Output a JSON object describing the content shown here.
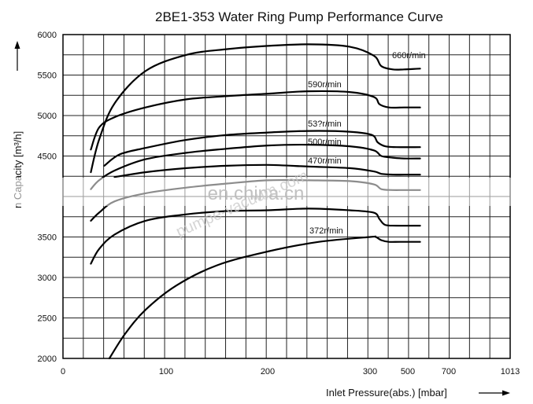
{
  "chart_data": {
    "type": "line",
    "title": "2BE1-353 Water Ring Pump Performance Curve",
    "xlabel": "Inlet Pressure(abs.) [mbar]",
    "ylabel": "Suction Capacity  [m³/h]",
    "ylabel_visible_left": "n Capacity  [m³/h]",
    "x_tick_labels": [
      "0",
      "100",
      "200",
      "300",
      "500",
      "700",
      "1013"
    ],
    "y_tick_labels": [
      "2000",
      "2500",
      "3000",
      "3500",
      "4500",
      "5000",
      "5500",
      "6000"
    ],
    "ylim": [
      2000,
      6000
    ],
    "grid": true,
    "series": [
      {
        "name": "660r/min",
        "points": [
          [
            27,
            4300
          ],
          [
            35,
            4700
          ],
          [
            50,
            5150
          ],
          [
            80,
            5550
          ],
          [
            120,
            5750
          ],
          [
            160,
            5820
          ],
          [
            200,
            5860
          ],
          [
            240,
            5880
          ],
          [
            280,
            5850
          ],
          [
            320,
            5740
          ],
          [
            360,
            5610
          ],
          [
            420,
            5570
          ],
          [
            480,
            5570
          ],
          [
            560,
            5580
          ]
        ]
      },
      {
        "name": "590r/min",
        "points": [
          [
            27,
            4580
          ],
          [
            35,
            4850
          ],
          [
            50,
            4980
          ],
          [
            80,
            5100
          ],
          [
            120,
            5200
          ],
          [
            160,
            5240
          ],
          [
            200,
            5270
          ],
          [
            240,
            5300
          ],
          [
            280,
            5290
          ],
          [
            320,
            5230
          ],
          [
            350,
            5140
          ],
          [
            400,
            5100
          ],
          [
            480,
            5100
          ],
          [
            560,
            5100
          ]
        ]
      },
      {
        "name": "53?r/min",
        "points": [
          [
            40,
            4380
          ],
          [
            55,
            4520
          ],
          [
            80,
            4600
          ],
          [
            120,
            4700
          ],
          [
            160,
            4760
          ],
          [
            200,
            4790
          ],
          [
            240,
            4810
          ],
          [
            280,
            4800
          ],
          [
            310,
            4760
          ],
          [
            340,
            4670
          ],
          [
            380,
            4620
          ],
          [
            440,
            4610
          ],
          [
            560,
            4610
          ]
        ]
      },
      {
        "name": "500r/min",
        "points": [
          [
            27,
            4090
          ],
          [
            35,
            4200
          ],
          [
            50,
            4320
          ],
          [
            80,
            4460
          ],
          [
            120,
            4540
          ],
          [
            160,
            4590
          ],
          [
            200,
            4630
          ],
          [
            240,
            4640
          ],
          [
            280,
            4620
          ],
          [
            320,
            4570
          ],
          [
            360,
            4500
          ],
          [
            420,
            4480
          ],
          [
            480,
            4470
          ],
          [
            560,
            4470
          ]
        ]
      },
      {
        "name": "470r/min",
        "points": [
          [
            50,
            4240
          ],
          [
            80,
            4300
          ],
          [
            120,
            4350
          ],
          [
            160,
            4380
          ],
          [
            200,
            4390
          ],
          [
            240,
            4370
          ],
          [
            280,
            4350
          ],
          [
            320,
            4310
          ],
          [
            360,
            4280
          ],
          [
            420,
            4270
          ],
          [
            480,
            4270
          ],
          [
            560,
            4270
          ]
        ]
      },
      {
        "name": "",
        "points": [
          [
            27,
            3700
          ],
          [
            35,
            3800
          ],
          [
            50,
            3940
          ],
          [
            80,
            4040
          ],
          [
            120,
            4110
          ],
          [
            160,
            4160
          ],
          [
            200,
            4200
          ],
          [
            240,
            4200
          ],
          [
            280,
            4190
          ],
          [
            320,
            4150
          ],
          [
            360,
            4090
          ],
          [
            420,
            4080
          ],
          [
            480,
            4080
          ],
          [
            560,
            4080
          ]
        ]
      },
      {
        "name": "",
        "points": [
          [
            27,
            3170
          ],
          [
            35,
            3350
          ],
          [
            50,
            3530
          ],
          [
            80,
            3700
          ],
          [
            120,
            3780
          ],
          [
            160,
            3820
          ],
          [
            200,
            3830
          ],
          [
            240,
            3850
          ],
          [
            280,
            3830
          ],
          [
            320,
            3800
          ],
          [
            350,
            3720
          ],
          [
            380,
            3650
          ],
          [
            440,
            3640
          ],
          [
            560,
            3640
          ]
        ]
      },
      {
        "name": "372r/min",
        "points": [
          [
            45,
            2000
          ],
          [
            60,
            2300
          ],
          [
            80,
            2600
          ],
          [
            110,
            2900
          ],
          [
            150,
            3150
          ],
          [
            200,
            3320
          ],
          [
            250,
            3440
          ],
          [
            300,
            3500
          ],
          [
            330,
            3500
          ],
          [
            360,
            3460
          ],
          [
            400,
            3440
          ],
          [
            460,
            3440
          ],
          [
            560,
            3440
          ]
        ]
      }
    ],
    "watermarks": [
      "en.china.cn",
      "pumpe-vacuum.com"
    ]
  }
}
